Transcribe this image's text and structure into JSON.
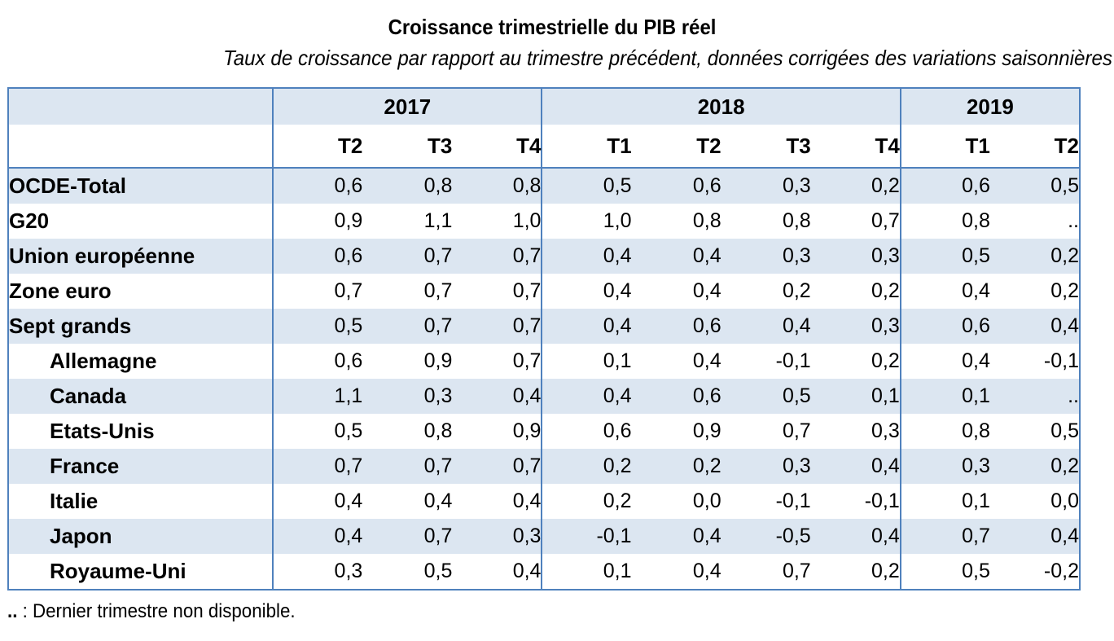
{
  "title": "Croissance trimestrielle du PIB réel",
  "subtitle": "Taux de croissance par rapport au trimestre précédent, données corrigées des variations saisonnières",
  "years": [
    {
      "label": "2017",
      "span": 3
    },
    {
      "label": "2018",
      "span": 4
    },
    {
      "label": "2019",
      "span": 2
    }
  ],
  "quarters": [
    "T2",
    "T3",
    "T4",
    "T1",
    "T2",
    "T3",
    "T4",
    "T1",
    "T2"
  ],
  "rows": [
    {
      "label": "OCDE-Total",
      "values": [
        "0,6",
        "0,8",
        "0,8",
        "0,5",
        "0,6",
        "0,3",
        "0,2",
        "0,6",
        "0,5"
      ]
    },
    {
      "label": "G20",
      "values": [
        "0,9",
        "1,1",
        "1,0",
        "1,0",
        "0,8",
        "0,8",
        "0,7",
        "0,8",
        ".."
      ]
    },
    {
      "label": "Union européenne",
      "values": [
        "0,6",
        "0,7",
        "0,7",
        "0,4",
        "0,4",
        "0,3",
        "0,3",
        "0,5",
        "0,2"
      ]
    },
    {
      "label": "Zone euro",
      "values": [
        "0,7",
        "0,7",
        "0,7",
        "0,4",
        "0,4",
        "0,2",
        "0,2",
        "0,4",
        "0,2"
      ]
    },
    {
      "label": "Sept grands",
      "values": [
        "0,5",
        "0,7",
        "0,7",
        "0,4",
        "0,6",
        "0,4",
        "0,3",
        "0,6",
        "0,4"
      ]
    },
    {
      "label": "Allemagne",
      "values": [
        "0,6",
        "0,9",
        "0,7",
        "0,1",
        "0,4",
        "-0,1",
        "0,2",
        "0,4",
        "-0,1"
      ]
    },
    {
      "label": "Canada",
      "values": [
        "1,1",
        "0,3",
        "0,4",
        "0,4",
        "0,6",
        "0,5",
        "0,1",
        "0,1",
        ".."
      ]
    },
    {
      "label": "Etats-Unis",
      "values": [
        "0,5",
        "0,8",
        "0,9",
        "0,6",
        "0,9",
        "0,7",
        "0,3",
        "0,8",
        "0,5"
      ]
    },
    {
      "label": "France",
      "values": [
        "0,7",
        "0,7",
        "0,7",
        "0,2",
        "0,2",
        "0,3",
        "0,4",
        "0,3",
        "0,2"
      ]
    },
    {
      "label": "Italie",
      "values": [
        "0,4",
        "0,4",
        "0,4",
        "0,2",
        "0,0",
        "-0,1",
        "-0,1",
        "0,1",
        "0,0"
      ]
    },
    {
      "label": "Japon",
      "values": [
        "0,4",
        "0,7",
        "0,3",
        "-0,1",
        "0,4",
        "-0,5",
        "0,4",
        "0,7",
        "0,4"
      ]
    },
    {
      "label": "Royaume-Uni",
      "values": [
        "0,3",
        "0,5",
        "0,4",
        "0,1",
        "0,4",
        "0,7",
        "0,2",
        "0,5",
        "-0,2"
      ]
    }
  ],
  "footnote": {
    "symbol": "..",
    "separator": " : ",
    "text": "Dernier trimestre non disponible."
  },
  "colors": {
    "band": "#dce6f1",
    "border": "#4f81bd"
  }
}
